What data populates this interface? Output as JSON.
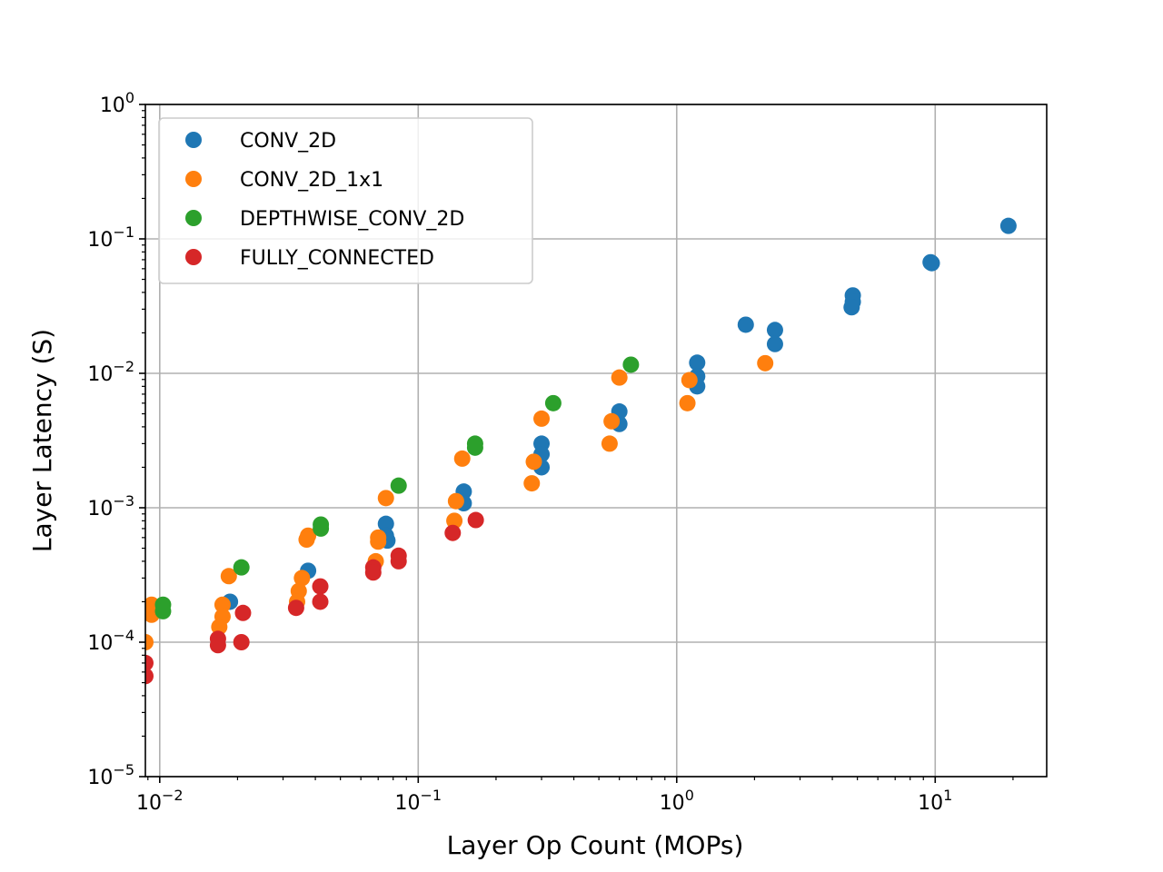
{
  "chart_data": {
    "type": "scatter",
    "xscale": "log",
    "yscale": "log",
    "xlabel": "Layer Op Count (MOPs)",
    "ylabel": "Layer Latency (S)",
    "xlim": [
      0.0088,
      27
    ],
    "ylim": [
      1e-05,
      1
    ],
    "grid": true,
    "legend_position": "top-left",
    "x_ticks": [
      {
        "value": 0.01,
        "base": "10",
        "exp": "−2"
      },
      {
        "value": 0.1,
        "base": "10",
        "exp": "−1"
      },
      {
        "value": 1,
        "base": "10",
        "exp": "0"
      },
      {
        "value": 10,
        "base": "10",
        "exp": "1"
      }
    ],
    "y_ticks": [
      {
        "value": 1e-05,
        "base": "10",
        "exp": "−5"
      },
      {
        "value": 0.0001,
        "base": "10",
        "exp": "−4"
      },
      {
        "value": 0.001,
        "base": "10",
        "exp": "−3"
      },
      {
        "value": 0.01,
        "base": "10",
        "exp": "−2"
      },
      {
        "value": 0.1,
        "base": "10",
        "exp": "−1"
      },
      {
        "value": 1,
        "base": "10",
        "exp": "0"
      }
    ],
    "series": [
      {
        "name": "CONV_2D",
        "color": "#1f77b4",
        "points": [
          [
            0.0187,
            0.0002
          ],
          [
            0.0375,
            0.00034
          ],
          [
            0.075,
            0.00076
          ],
          [
            0.075,
            0.00062
          ],
          [
            0.076,
            0.00057
          ],
          [
            0.15,
            0.00132
          ],
          [
            0.15,
            0.00108
          ],
          [
            0.3,
            0.003
          ],
          [
            0.3,
            0.0025
          ],
          [
            0.3,
            0.002
          ],
          [
            0.6,
            0.0052
          ],
          [
            0.6,
            0.0042
          ],
          [
            1.2,
            0.012
          ],
          [
            1.2,
            0.0095
          ],
          [
            1.2,
            0.008
          ],
          [
            1.85,
            0.023
          ],
          [
            2.4,
            0.021
          ],
          [
            2.4,
            0.0165
          ],
          [
            4.8,
            0.038
          ],
          [
            4.8,
            0.034
          ],
          [
            4.75,
            0.031
          ],
          [
            9.6,
            0.067
          ],
          [
            9.7,
            0.066
          ],
          [
            19.2,
            0.125
          ]
        ]
      },
      {
        "name": "CONV_2D_1x1",
        "color": "#ff7f0e",
        "points": [
          [
            0.0093,
            0.00019
          ],
          [
            0.0093,
            0.00016
          ],
          [
            0.0088,
            0.0001
          ],
          [
            0.0185,
            0.00031
          ],
          [
            0.0175,
            0.00019
          ],
          [
            0.0175,
            0.000155
          ],
          [
            0.017,
            0.00013
          ],
          [
            0.0355,
            0.0003
          ],
          [
            0.0345,
            0.00024
          ],
          [
            0.034,
            0.0002
          ],
          [
            0.0375,
            0.00062
          ],
          [
            0.037,
            0.00058
          ],
          [
            0.075,
            0.00118
          ],
          [
            0.07,
            0.0006
          ],
          [
            0.07,
            0.00056
          ],
          [
            0.0685,
            0.0004
          ],
          [
            0.148,
            0.00232
          ],
          [
            0.14,
            0.00112
          ],
          [
            0.138,
            0.0008
          ],
          [
            0.3,
            0.0046
          ],
          [
            0.28,
            0.0022
          ],
          [
            0.275,
            0.00152
          ],
          [
            0.6,
            0.0093
          ],
          [
            0.56,
            0.0044
          ],
          [
            0.55,
            0.003
          ],
          [
            1.12,
            0.0089
          ],
          [
            1.1,
            0.006
          ],
          [
            2.2,
            0.0119
          ]
        ]
      },
      {
        "name": "DEPTHWISE_CONV_2D",
        "color": "#2ca02c",
        "points": [
          [
            0.0103,
            0.00019
          ],
          [
            0.0103,
            0.00017
          ],
          [
            0.0207,
            0.00036
          ],
          [
            0.042,
            0.00075
          ],
          [
            0.042,
            0.0007
          ],
          [
            0.084,
            0.00146
          ],
          [
            0.166,
            0.003
          ],
          [
            0.166,
            0.0028
          ],
          [
            0.333,
            0.006
          ],
          [
            0.665,
            0.0116
          ]
        ]
      },
      {
        "name": "FULLY_CONNECTED",
        "color": "#d62728",
        "points": [
          [
            0.0088,
            7e-05
          ],
          [
            0.0088,
            5.6e-05
          ],
          [
            0.0168,
            0.000106
          ],
          [
            0.0168,
            9.5e-05
          ],
          [
            0.021,
            0.000165
          ],
          [
            0.0207,
            0.0001
          ],
          [
            0.0337,
            0.00018
          ],
          [
            0.0418,
            0.00026
          ],
          [
            0.0418,
            0.0002
          ],
          [
            0.067,
            0.00036
          ],
          [
            0.067,
            0.00033
          ],
          [
            0.084,
            0.00044
          ],
          [
            0.084,
            0.0004
          ],
          [
            0.136,
            0.00065
          ],
          [
            0.167,
            0.00081
          ]
        ]
      }
    ]
  }
}
